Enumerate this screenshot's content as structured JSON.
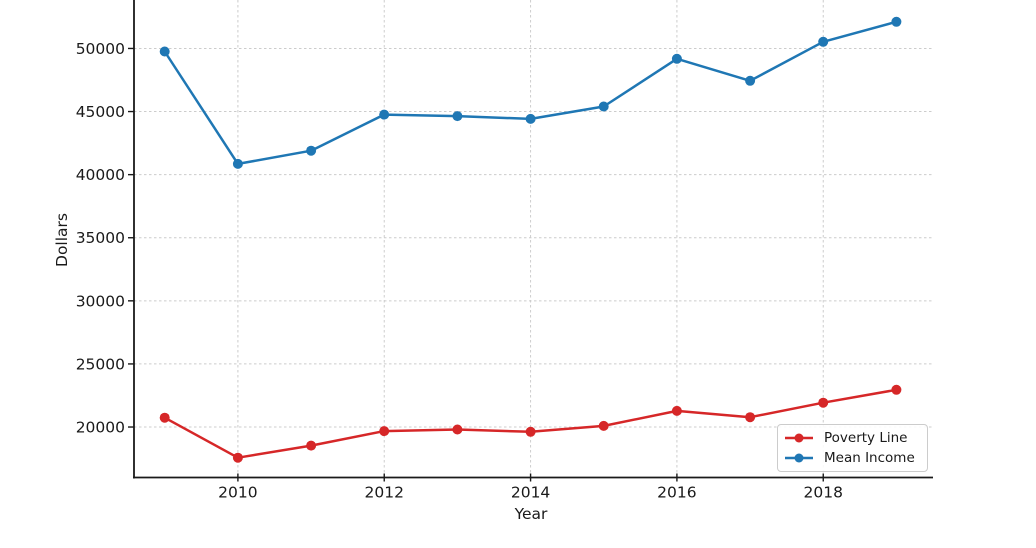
{
  "chart_data": {
    "type": "line",
    "title": "",
    "xlabel": "Year",
    "ylabel": "Dollars",
    "x": [
      2009,
      2010,
      2011,
      2012,
      2013,
      2014,
      2015,
      2016,
      2017,
      2018,
      2019
    ],
    "series": [
      {
        "name": "Poverty Line",
        "color": "#d62728",
        "values": [
          20740,
          17570,
          18530,
          19680,
          19800,
          19620,
          20090,
          21280,
          20780,
          21930,
          22950
        ]
      },
      {
        "name": "Mean Income",
        "color": "#1f77b4",
        "values": [
          49760,
          40850,
          41900,
          44760,
          44640,
          44420,
          45400,
          49180,
          47440,
          50530,
          52110
        ]
      }
    ],
    "xticks": {
      "values": [
        2010,
        2012,
        2014,
        2016,
        2018
      ],
      "labels": [
        "2010",
        "2012",
        "2014",
        "2016",
        "2018"
      ]
    },
    "yticks": {
      "values": [
        20000,
        25000,
        30000,
        35000,
        40000,
        45000,
        50000
      ],
      "labels": [
        "20000",
        "25000",
        "30000",
        "35000",
        "40000",
        "45000",
        "50000"
      ]
    },
    "xlim": [
      2008.58,
      2019.5
    ],
    "ylim": [
      16000,
      53840
    ],
    "grid": true,
    "grid_style": "dashed",
    "legend_position": "lower right",
    "note": "figure cropped at top; no top/right spines visible"
  },
  "styles": {
    "background": "#ffffff",
    "grid_color": "#cccccc",
    "spine_color": "#1a1a1a",
    "tick_color": "#1a1a1a",
    "text_color": "#1a1a1a",
    "legend_border": "#cccccc",
    "poverty_line_color": "#d62728",
    "mean_income_color": "#1f77b4"
  }
}
